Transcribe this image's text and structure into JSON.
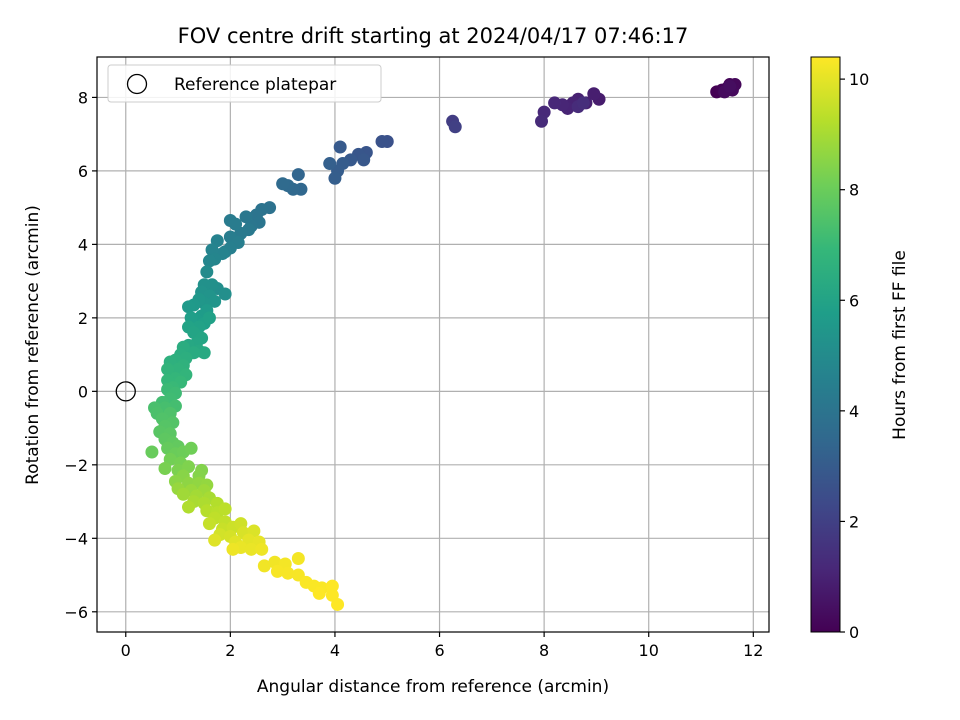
{
  "chart_data": {
    "type": "scatter",
    "title": "FOV centre drift starting at 2024/04/17 07:46:17",
    "xlabel": "Angular distance from reference (arcmin)",
    "ylabel": "Rotation from reference (arcmin)",
    "xlim": [
      -0.55,
      12.3
    ],
    "ylim": [
      -6.55,
      9.1
    ],
    "xticks": [
      0,
      2,
      4,
      6,
      8,
      10,
      12
    ],
    "yticks": [
      -6,
      -4,
      -2,
      0,
      2,
      4,
      6,
      8
    ],
    "grid": true,
    "legend": {
      "placement": "top-left",
      "entries": [
        "Reference platepar"
      ]
    },
    "colorbar": {
      "label": "Hours from first FF file",
      "colormap": "viridis",
      "range": [
        0,
        10.4
      ],
      "ticks": [
        0,
        2,
        4,
        6,
        8,
        10
      ]
    },
    "reference_point": {
      "x": 0,
      "y": 0
    },
    "series": [
      {
        "name": "Reference platepar",
        "points": [
          {
            "x": 0,
            "y": 0
          }
        ]
      },
      {
        "points": [
          {
            "x": 11.3,
            "y": 8.15,
            "c": 0.0
          },
          {
            "x": 11.4,
            "y": 8.2,
            "c": 0.05
          },
          {
            "x": 11.5,
            "y": 8.25,
            "c": 0.1
          },
          {
            "x": 11.55,
            "y": 8.35,
            "c": 0.15
          },
          {
            "x": 11.65,
            "y": 8.35,
            "c": 0.2
          },
          {
            "x": 11.6,
            "y": 8.2,
            "c": 0.25
          },
          {
            "x": 11.45,
            "y": 8.15,
            "c": 0.3
          },
          {
            "x": 11.55,
            "y": 8.3,
            "c": 0.35
          },
          {
            "x": 9.05,
            "y": 7.95,
            "c": 0.8
          },
          {
            "x": 8.95,
            "y": 8.1,
            "c": 0.85
          },
          {
            "x": 8.8,
            "y": 7.85,
            "c": 0.9
          },
          {
            "x": 8.65,
            "y": 7.95,
            "c": 0.95
          },
          {
            "x": 8.55,
            "y": 7.85,
            "c": 1.0
          },
          {
            "x": 8.45,
            "y": 7.7,
            "c": 1.05
          },
          {
            "x": 8.35,
            "y": 7.8,
            "c": 1.1
          },
          {
            "x": 8.2,
            "y": 7.85,
            "c": 1.15
          },
          {
            "x": 8.0,
            "y": 7.6,
            "c": 1.2
          },
          {
            "x": 7.95,
            "y": 7.35,
            "c": 1.25
          },
          {
            "x": 8.65,
            "y": 7.75,
            "c": 1.3
          },
          {
            "x": 8.75,
            "y": 7.85,
            "c": 1.35
          },
          {
            "x": 6.25,
            "y": 7.35,
            "c": 1.9
          },
          {
            "x": 6.3,
            "y": 7.2,
            "c": 2.0
          },
          {
            "x": 5.0,
            "y": 6.8,
            "c": 2.6
          },
          {
            "x": 4.9,
            "y": 6.8,
            "c": 2.65
          },
          {
            "x": 4.6,
            "y": 6.5,
            "c": 2.75
          },
          {
            "x": 4.45,
            "y": 6.45,
            "c": 2.8
          },
          {
            "x": 4.55,
            "y": 6.3,
            "c": 2.85
          },
          {
            "x": 4.3,
            "y": 6.3,
            "c": 2.9
          },
          {
            "x": 4.1,
            "y": 6.65,
            "c": 2.95
          },
          {
            "x": 4.15,
            "y": 6.2,
            "c": 3.0
          },
          {
            "x": 4.05,
            "y": 6.0,
            "c": 3.05
          },
          {
            "x": 4.0,
            "y": 5.8,
            "c": 3.1
          },
          {
            "x": 3.9,
            "y": 6.2,
            "c": 3.15
          },
          {
            "x": 3.3,
            "y": 5.9,
            "c": 3.4
          },
          {
            "x": 3.35,
            "y": 5.5,
            "c": 3.45
          },
          {
            "x": 3.2,
            "y": 5.5,
            "c": 3.5
          },
          {
            "x": 3.1,
            "y": 5.6,
            "c": 3.55
          },
          {
            "x": 3.0,
            "y": 5.65,
            "c": 3.6
          },
          {
            "x": 2.75,
            "y": 5.0,
            "c": 3.9
          },
          {
            "x": 2.6,
            "y": 4.95,
            "c": 3.95
          },
          {
            "x": 2.5,
            "y": 4.8,
            "c": 4.0
          },
          {
            "x": 2.55,
            "y": 4.6,
            "c": 4.05
          },
          {
            "x": 2.4,
            "y": 4.5,
            "c": 4.1
          },
          {
            "x": 2.3,
            "y": 4.75,
            "c": 4.15
          },
          {
            "x": 2.35,
            "y": 4.4,
            "c": 4.2
          },
          {
            "x": 2.2,
            "y": 4.3,
            "c": 4.25
          },
          {
            "x": 2.0,
            "y": 4.65,
            "c": 4.3
          },
          {
            "x": 2.1,
            "y": 4.55,
            "c": 4.35
          },
          {
            "x": 2.0,
            "y": 4.2,
            "c": 4.4
          },
          {
            "x": 2.15,
            "y": 4.05,
            "c": 4.45
          },
          {
            "x": 2.0,
            "y": 3.9,
            "c": 4.5
          },
          {
            "x": 1.9,
            "y": 3.8,
            "c": 4.55
          },
          {
            "x": 1.75,
            "y": 4.1,
            "c": 4.6
          },
          {
            "x": 1.85,
            "y": 3.75,
            "c": 4.65
          },
          {
            "x": 1.65,
            "y": 3.85,
            "c": 4.7
          },
          {
            "x": 1.7,
            "y": 3.6,
            "c": 4.75
          },
          {
            "x": 1.6,
            "y": 3.55,
            "c": 4.8
          },
          {
            "x": 1.55,
            "y": 3.25,
            "c": 5.0
          },
          {
            "x": 1.75,
            "y": 2.8,
            "c": 5.1
          },
          {
            "x": 1.9,
            "y": 2.65,
            "c": 5.15
          },
          {
            "x": 1.65,
            "y": 2.9,
            "c": 5.2
          },
          {
            "x": 1.5,
            "y": 2.9,
            "c": 5.25
          },
          {
            "x": 1.45,
            "y": 2.7,
            "c": 5.3
          },
          {
            "x": 1.6,
            "y": 2.6,
            "c": 5.35
          },
          {
            "x": 1.7,
            "y": 2.45,
            "c": 5.4
          },
          {
            "x": 1.5,
            "y": 2.4,
            "c": 5.45
          },
          {
            "x": 1.4,
            "y": 2.5,
            "c": 5.5
          },
          {
            "x": 1.3,
            "y": 2.35,
            "c": 5.55
          },
          {
            "x": 1.2,
            "y": 2.3,
            "c": 5.6
          },
          {
            "x": 1.55,
            "y": 2.2,
            "c": 5.65
          },
          {
            "x": 1.45,
            "y": 2.05,
            "c": 5.7
          },
          {
            "x": 1.35,
            "y": 1.95,
            "c": 5.75
          },
          {
            "x": 1.25,
            "y": 2.0,
            "c": 5.8
          },
          {
            "x": 1.5,
            "y": 1.85,
            "c": 5.85
          },
          {
            "x": 1.6,
            "y": 2.0,
            "c": 5.9
          },
          {
            "x": 1.4,
            "y": 1.75,
            "c": 5.95
          },
          {
            "x": 1.2,
            "y": 1.75,
            "c": 6.0
          },
          {
            "x": 1.3,
            "y": 1.6,
            "c": 6.05
          },
          {
            "x": 1.45,
            "y": 1.45,
            "c": 6.1
          },
          {
            "x": 1.35,
            "y": 1.3,
            "c": 6.15
          },
          {
            "x": 1.2,
            "y": 1.25,
            "c": 6.2
          },
          {
            "x": 1.4,
            "y": 1.1,
            "c": 6.25
          },
          {
            "x": 1.5,
            "y": 1.05,
            "c": 6.3
          },
          {
            "x": 1.3,
            "y": 1.05,
            "c": 6.35
          },
          {
            "x": 1.1,
            "y": 1.2,
            "c": 6.4
          },
          {
            "x": 1.05,
            "y": 1.0,
            "c": 6.45
          },
          {
            "x": 1.15,
            "y": 0.9,
            "c": 6.5
          },
          {
            "x": 0.95,
            "y": 0.85,
            "c": 6.55
          },
          {
            "x": 0.85,
            "y": 0.8,
            "c": 6.6
          },
          {
            "x": 1.1,
            "y": 0.7,
            "c": 6.65
          },
          {
            "x": 1.0,
            "y": 0.6,
            "c": 6.7
          },
          {
            "x": 0.8,
            "y": 0.6,
            "c": 6.75
          },
          {
            "x": 1.15,
            "y": 0.45,
            "c": 6.8
          },
          {
            "x": 0.95,
            "y": 0.35,
            "c": 6.85
          },
          {
            "x": 0.8,
            "y": 0.3,
            "c": 6.9
          },
          {
            "x": 1.05,
            "y": 0.25,
            "c": 6.95
          },
          {
            "x": 0.9,
            "y": 0.1,
            "c": 7.0
          },
          {
            "x": 0.8,
            "y": 0.05,
            "c": 7.05
          },
          {
            "x": 0.95,
            "y": -0.05,
            "c": 7.1
          },
          {
            "x": 0.85,
            "y": -0.2,
            "c": 7.15
          },
          {
            "x": 0.7,
            "y": -0.3,
            "c": 7.2
          },
          {
            "x": 0.95,
            "y": -0.4,
            "c": 7.25
          },
          {
            "x": 0.75,
            "y": -0.45,
            "c": 7.3
          },
          {
            "x": 0.55,
            "y": -0.45,
            "c": 7.35
          },
          {
            "x": 0.6,
            "y": -0.6,
            "c": 7.4
          },
          {
            "x": 0.85,
            "y": -0.6,
            "c": 7.45
          },
          {
            "x": 0.7,
            "y": -0.75,
            "c": 7.5
          },
          {
            "x": 0.9,
            "y": -0.85,
            "c": 7.55
          },
          {
            "x": 0.75,
            "y": -0.95,
            "c": 7.6
          },
          {
            "x": 0.65,
            "y": -1.1,
            "c": 7.65
          },
          {
            "x": 0.85,
            "y": -1.15,
            "c": 7.7
          },
          {
            "x": 0.75,
            "y": -1.3,
            "c": 7.75
          },
          {
            "x": 0.9,
            "y": -1.4,
            "c": 7.8
          },
          {
            "x": 1.0,
            "y": -1.5,
            "c": 7.85
          },
          {
            "x": 0.8,
            "y": -1.55,
            "c": 7.9
          },
          {
            "x": 0.5,
            "y": -1.65,
            "c": 7.95
          },
          {
            "x": 0.95,
            "y": -1.7,
            "c": 8.0
          },
          {
            "x": 1.1,
            "y": -1.65,
            "c": 8.05
          },
          {
            "x": 1.25,
            "y": -1.55,
            "c": 8.1
          },
          {
            "x": 0.85,
            "y": -1.85,
            "c": 8.15
          },
          {
            "x": 1.05,
            "y": -1.95,
            "c": 8.2
          },
          {
            "x": 0.75,
            "y": -2.1,
            "c": 8.25
          },
          {
            "x": 1.0,
            "y": -2.15,
            "c": 8.3
          },
          {
            "x": 1.2,
            "y": -2.05,
            "c": 8.35
          },
          {
            "x": 1.45,
            "y": -2.15,
            "c": 8.4
          },
          {
            "x": 1.4,
            "y": -2.3,
            "c": 8.45
          },
          {
            "x": 1.1,
            "y": -2.3,
            "c": 8.5
          },
          {
            "x": 0.95,
            "y": -2.45,
            "c": 8.55
          },
          {
            "x": 1.2,
            "y": -2.5,
            "c": 8.6
          },
          {
            "x": 1.4,
            "y": -2.5,
            "c": 8.65
          },
          {
            "x": 1.55,
            "y": -2.55,
            "c": 8.7
          },
          {
            "x": 1.0,
            "y": -2.65,
            "c": 8.75
          },
          {
            "x": 1.25,
            "y": -2.7,
            "c": 8.8
          },
          {
            "x": 1.5,
            "y": -2.7,
            "c": 8.85
          },
          {
            "x": 1.1,
            "y": -2.8,
            "c": 8.9
          },
          {
            "x": 1.35,
            "y": -2.85,
            "c": 8.95
          },
          {
            "x": 1.6,
            "y": -2.9,
            "c": 9.0
          },
          {
            "x": 1.3,
            "y": -3.0,
            "c": 9.05
          },
          {
            "x": 1.5,
            "y": -3.05,
            "c": 9.1
          },
          {
            "x": 1.2,
            "y": -3.15,
            "c": 9.15
          },
          {
            "x": 1.75,
            "y": -3.05,
            "c": 9.2
          },
          {
            "x": 1.55,
            "y": -3.25,
            "c": 9.25
          },
          {
            "x": 1.75,
            "y": -3.3,
            "c": 9.3
          },
          {
            "x": 1.9,
            "y": -3.2,
            "c": 9.35
          },
          {
            "x": 1.7,
            "y": -3.45,
            "c": 9.4
          },
          {
            "x": 1.9,
            "y": -3.55,
            "c": 9.45
          },
          {
            "x": 1.6,
            "y": -3.6,
            "c": 9.5
          },
          {
            "x": 1.85,
            "y": -3.75,
            "c": 9.55
          },
          {
            "x": 2.05,
            "y": -3.7,
            "c": 9.6
          },
          {
            "x": 2.2,
            "y": -3.6,
            "c": 9.65
          },
          {
            "x": 1.8,
            "y": -3.9,
            "c": 9.7
          },
          {
            "x": 2.0,
            "y": -3.95,
            "c": 9.75
          },
          {
            "x": 2.25,
            "y": -3.85,
            "c": 9.8
          },
          {
            "x": 2.45,
            "y": -3.8,
            "c": 9.85
          },
          {
            "x": 1.7,
            "y": -4.05,
            "c": 9.9
          },
          {
            "x": 2.1,
            "y": -4.1,
            "c": 9.95
          },
          {
            "x": 2.35,
            "y": -4.05,
            "c": 10.0
          },
          {
            "x": 2.55,
            "y": -4.1,
            "c": 10.05
          },
          {
            "x": 2.2,
            "y": -4.25,
            "c": 10.1
          },
          {
            "x": 2.4,
            "y": -4.3,
            "c": 10.1
          },
          {
            "x": 2.6,
            "y": -4.3,
            "c": 10.15
          },
          {
            "x": 2.05,
            "y": -4.3,
            "c": 10.15
          },
          {
            "x": 2.65,
            "y": -4.75,
            "c": 10.2
          },
          {
            "x": 2.85,
            "y": -4.65,
            "c": 10.2
          },
          {
            "x": 3.05,
            "y": -4.7,
            "c": 10.25
          },
          {
            "x": 3.3,
            "y": -4.55,
            "c": 10.25
          },
          {
            "x": 2.9,
            "y": -4.9,
            "c": 10.3
          },
          {
            "x": 3.1,
            "y": -4.95,
            "c": 10.3
          },
          {
            "x": 3.3,
            "y": -5.0,
            "c": 10.3
          },
          {
            "x": 3.45,
            "y": -5.2,
            "c": 10.35
          },
          {
            "x": 3.6,
            "y": -5.3,
            "c": 10.35
          },
          {
            "x": 3.75,
            "y": -5.35,
            "c": 10.35
          },
          {
            "x": 3.95,
            "y": -5.3,
            "c": 10.4
          },
          {
            "x": 3.7,
            "y": -5.5,
            "c": 10.4
          },
          {
            "x": 3.95,
            "y": -5.55,
            "c": 10.4
          },
          {
            "x": 4.05,
            "y": -5.8,
            "c": 10.4
          }
        ]
      }
    ]
  }
}
